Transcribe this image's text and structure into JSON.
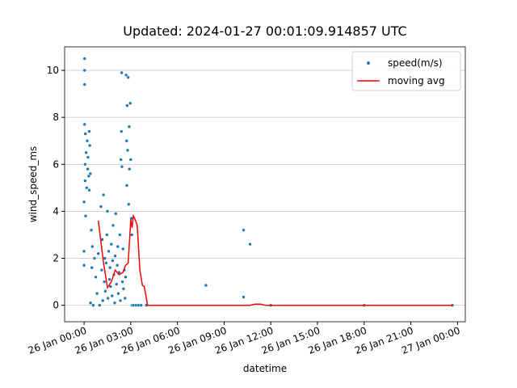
{
  "chart_data": {
    "type": "scatter",
    "title": "Updated: 2024-01-27 00:01:09.914857 UTC",
    "xlabel": "datetime",
    "ylabel": "wind_speed_ms",
    "xlim": [
      "25 Jan 22:45",
      "27 Jan 00:30"
    ],
    "xticks": [
      "26 Jan 00:00",
      "26 Jan 03:00",
      "26 Jan 06:00",
      "26 Jan 09:00",
      "26 Jan 12:00",
      "26 Jan 15:00",
      "26 Jan 18:00",
      "26 Jan 21:00",
      "27 Jan 00:00"
    ],
    "ylim": [
      -0.7,
      11.0
    ],
    "yticks": [
      0,
      2,
      4,
      6,
      8,
      10
    ],
    "grid": true,
    "legend": "upper right",
    "series": [
      {
        "name": "speed(m/s)",
        "kind": "scatter",
        "color": "#1f77b4",
        "x": [
          "26 Jan 00:00",
          "26 Jan 00:00",
          "26 Jan 00:00",
          "26 Jan 00:02",
          "26 Jan 00:02",
          "26 Jan 00:02",
          "26 Jan 00:02",
          "26 Jan 00:04",
          "26 Jan 00:04",
          "26 Jan 00:05",
          "26 Jan 00:06",
          "26 Jan 00:08",
          "26 Jan 00:10",
          "26 Jan 00:12",
          "26 Jan 00:14",
          "26 Jan 00:15",
          "26 Jan 00:18",
          "26 Jan 00:20",
          "26 Jan 00:20",
          "26 Jan 00:22",
          "26 Jan 00:24",
          "26 Jan 00:25",
          "26 Jan 00:28",
          "26 Jan 00:30",
          "26 Jan 00:32",
          "26 Jan 00:35",
          "26 Jan 00:40",
          "26 Jan 00:45",
          "26 Jan 00:50",
          "26 Jan 00:55",
          "26 Jan 01:00",
          "26 Jan 01:05",
          "26 Jan 01:08",
          "26 Jan 01:10",
          "26 Jan 01:12",
          "26 Jan 01:15",
          "26 Jan 01:18",
          "26 Jan 01:20",
          "26 Jan 01:22",
          "26 Jan 01:25",
          "26 Jan 01:28",
          "26 Jan 01:30",
          "26 Jan 01:32",
          "26 Jan 01:35",
          "26 Jan 01:38",
          "26 Jan 01:40",
          "26 Jan 01:42",
          "26 Jan 01:45",
          "26 Jan 01:48",
          "26 Jan 01:50",
          "26 Jan 01:52",
          "26 Jan 01:55",
          "26 Jan 01:58",
          "26 Jan 02:00",
          "26 Jan 02:02",
          "26 Jan 02:05",
          "26 Jan 02:08",
          "26 Jan 02:10",
          "26 Jan 02:12",
          "26 Jan 02:15",
          "26 Jan 02:18",
          "26 Jan 02:20",
          "26 Jan 02:22",
          "26 Jan 02:24",
          "26 Jan 02:25",
          "26 Jan 02:26",
          "26 Jan 02:28",
          "26 Jan 02:30",
          "26 Jan 02:32",
          "26 Jan 02:35",
          "26 Jan 02:38",
          "26 Jan 02:40",
          "26 Jan 02:42",
          "26 Jan 02:44",
          "26 Jan 02:45",
          "26 Jan 02:46",
          "26 Jan 02:48",
          "26 Jan 02:50",
          "26 Jan 02:52",
          "26 Jan 02:54",
          "26 Jan 02:55",
          "26 Jan 02:58",
          "26 Jan 03:00",
          "26 Jan 03:02",
          "26 Jan 03:04",
          "26 Jan 03:05",
          "26 Jan 03:10",
          "26 Jan 03:20",
          "26 Jan 03:30",
          "26 Jan 03:40",
          "26 Jan 04:00",
          "26 Jan 07:50",
          "26 Jan 10:15",
          "26 Jan 10:15",
          "26 Jan 10:40",
          "26 Jan 12:00",
          "26 Jan 18:00",
          "26 Jan 23:40"
        ],
        "values": [
          1.7,
          2.3,
          4.4,
          7.7,
          10.5,
          10.0,
          9.4,
          6.0,
          5.3,
          7.3,
          3.8,
          6.5,
          5.0,
          7.0,
          5.8,
          6.3,
          5.5,
          7.4,
          4.9,
          6.8,
          5.6,
          0.1,
          3.2,
          1.6,
          2.5,
          0.0,
          2.0,
          1.2,
          0.5,
          2.2,
          0.0,
          4.2,
          1.5,
          2.8,
          0.2,
          4.7,
          1.0,
          2.0,
          0.6,
          1.8,
          3.0,
          4.0,
          0.3,
          2.3,
          1.1,
          1.6,
          0.8,
          2.6,
          0.4,
          1.9,
          3.4,
          1.3,
          0.1,
          2.1,
          3.9,
          0.9,
          1.7,
          2.5,
          0.5,
          1.4,
          3.0,
          0.2,
          6.2,
          7.4,
          9.9,
          5.9,
          1.0,
          2.4,
          0.7,
          1.5,
          0.3,
          1.2,
          9.8,
          7.0,
          5.1,
          8.5,
          6.6,
          9.7,
          4.3,
          7.6,
          5.8,
          8.6,
          6.2,
          3.7,
          3.0,
          0.0,
          0.0,
          0.0,
          0.0,
          0.0,
          0.0,
          0.85,
          3.2,
          0.35,
          2.6,
          0.0,
          0.0,
          0.0
        ]
      },
      {
        "name": "moving avg",
        "kind": "line",
        "color": "#ff0000",
        "x": [
          "26 Jan 00:55",
          "26 Jan 01:15",
          "26 Jan 01:30",
          "26 Jan 01:45",
          "26 Jan 02:00",
          "26 Jan 02:15",
          "26 Jan 02:30",
          "26 Jan 02:40",
          "26 Jan 02:50",
          "26 Jan 03:00",
          "26 Jan 03:05",
          "26 Jan 03:10",
          "26 Jan 03:15",
          "26 Jan 03:25",
          "26 Jan 03:35",
          "26 Jan 03:45",
          "26 Jan 03:52",
          "26 Jan 04:05",
          "26 Jan 08:00",
          "26 Jan 10:40",
          "26 Jan 11:00",
          "26 Jan 11:20",
          "26 Jan 11:40",
          "26 Jan 23:40"
        ],
        "values": [
          3.6,
          1.8,
          0.75,
          1.0,
          1.5,
          1.3,
          1.4,
          1.7,
          1.8,
          3.65,
          3.3,
          3.8,
          3.7,
          3.4,
          1.5,
          0.85,
          0.8,
          0.0,
          0.0,
          0.0,
          0.05,
          0.05,
          0.0,
          0.0
        ]
      }
    ]
  }
}
